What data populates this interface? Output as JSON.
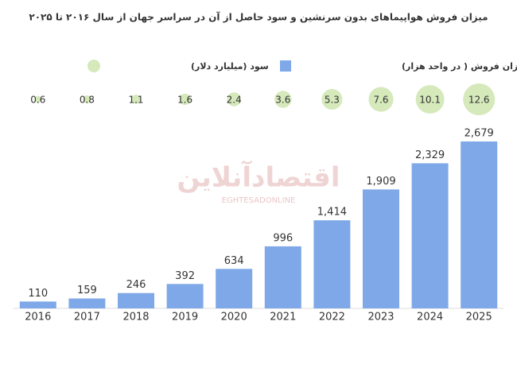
{
  "chart_data": {
    "type": "bar",
    "title": "میزان فروش هواپیماهای بدون سرنشین و سود حاصل از آن در سراسر جهان از سال ۲۰۱۶ تا ۲۰۲۵",
    "watermark": "اقتصادآنلاین",
    "watermark_sub": "EGHTESADONLINE",
    "categories": [
      "2016",
      "2017",
      "2018",
      "2019",
      "2020",
      "2021",
      "2022",
      "2023",
      "2024",
      "2025"
    ],
    "series": [
      {
        "name": "میزان فروش ( در واحد هزار)",
        "color": "#7fa8e8",
        "type": "bar",
        "values": [
          110,
          159,
          246,
          392,
          634,
          996,
          1414,
          1909,
          2329,
          2679
        ],
        "value_labels": [
          "110",
          "159",
          "246",
          "392",
          "634",
          "996",
          "1,414",
          "1,909",
          "2,329",
          "2,679"
        ]
      },
      {
        "name": "سود (میلیارد دلار)",
        "color": "#d5e9bb",
        "type": "bubble",
        "values": [
          0.6,
          0.8,
          1.1,
          1.6,
          2.4,
          3.6,
          5.3,
          7.6,
          10.1,
          12.6
        ]
      }
    ]
  }
}
